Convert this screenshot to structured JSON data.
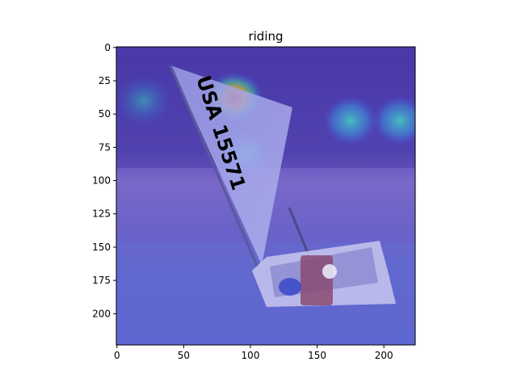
{
  "chart_data": {
    "type": "heatmap",
    "title": "riding",
    "xlabel": "",
    "ylabel": "",
    "xlim": [
      -0.5,
      223.5
    ],
    "ylim": [
      223.5,
      -0.5
    ],
    "x_ticks": [
      0,
      50,
      100,
      150,
      200
    ],
    "y_ticks": [
      0,
      25,
      50,
      75,
      100,
      125,
      150,
      175,
      200
    ],
    "x_tick_labels": [
      "0",
      "50",
      "100",
      "150",
      "200"
    ],
    "y_tick_labels": [
      "0",
      "25",
      "50",
      "75",
      "100",
      "125",
      "150",
      "175",
      "200"
    ],
    "grid": false,
    "legend": "none",
    "overlay": "attention heatmap (jet colormap, semi-transparent) over photo of a sailboat on a sandy beach",
    "sail_text": "USA 15571",
    "hotspots": [
      {
        "x": 88,
        "y": 38,
        "intensity": 1.0
      },
      {
        "x": 95,
        "y": 80,
        "intensity": 0.5
      },
      {
        "x": 175,
        "y": 55,
        "intensity": 0.45
      },
      {
        "x": 212,
        "y": 55,
        "intensity": 0.5
      },
      {
        "x": 20,
        "y": 40,
        "intensity": 0.3
      }
    ]
  }
}
